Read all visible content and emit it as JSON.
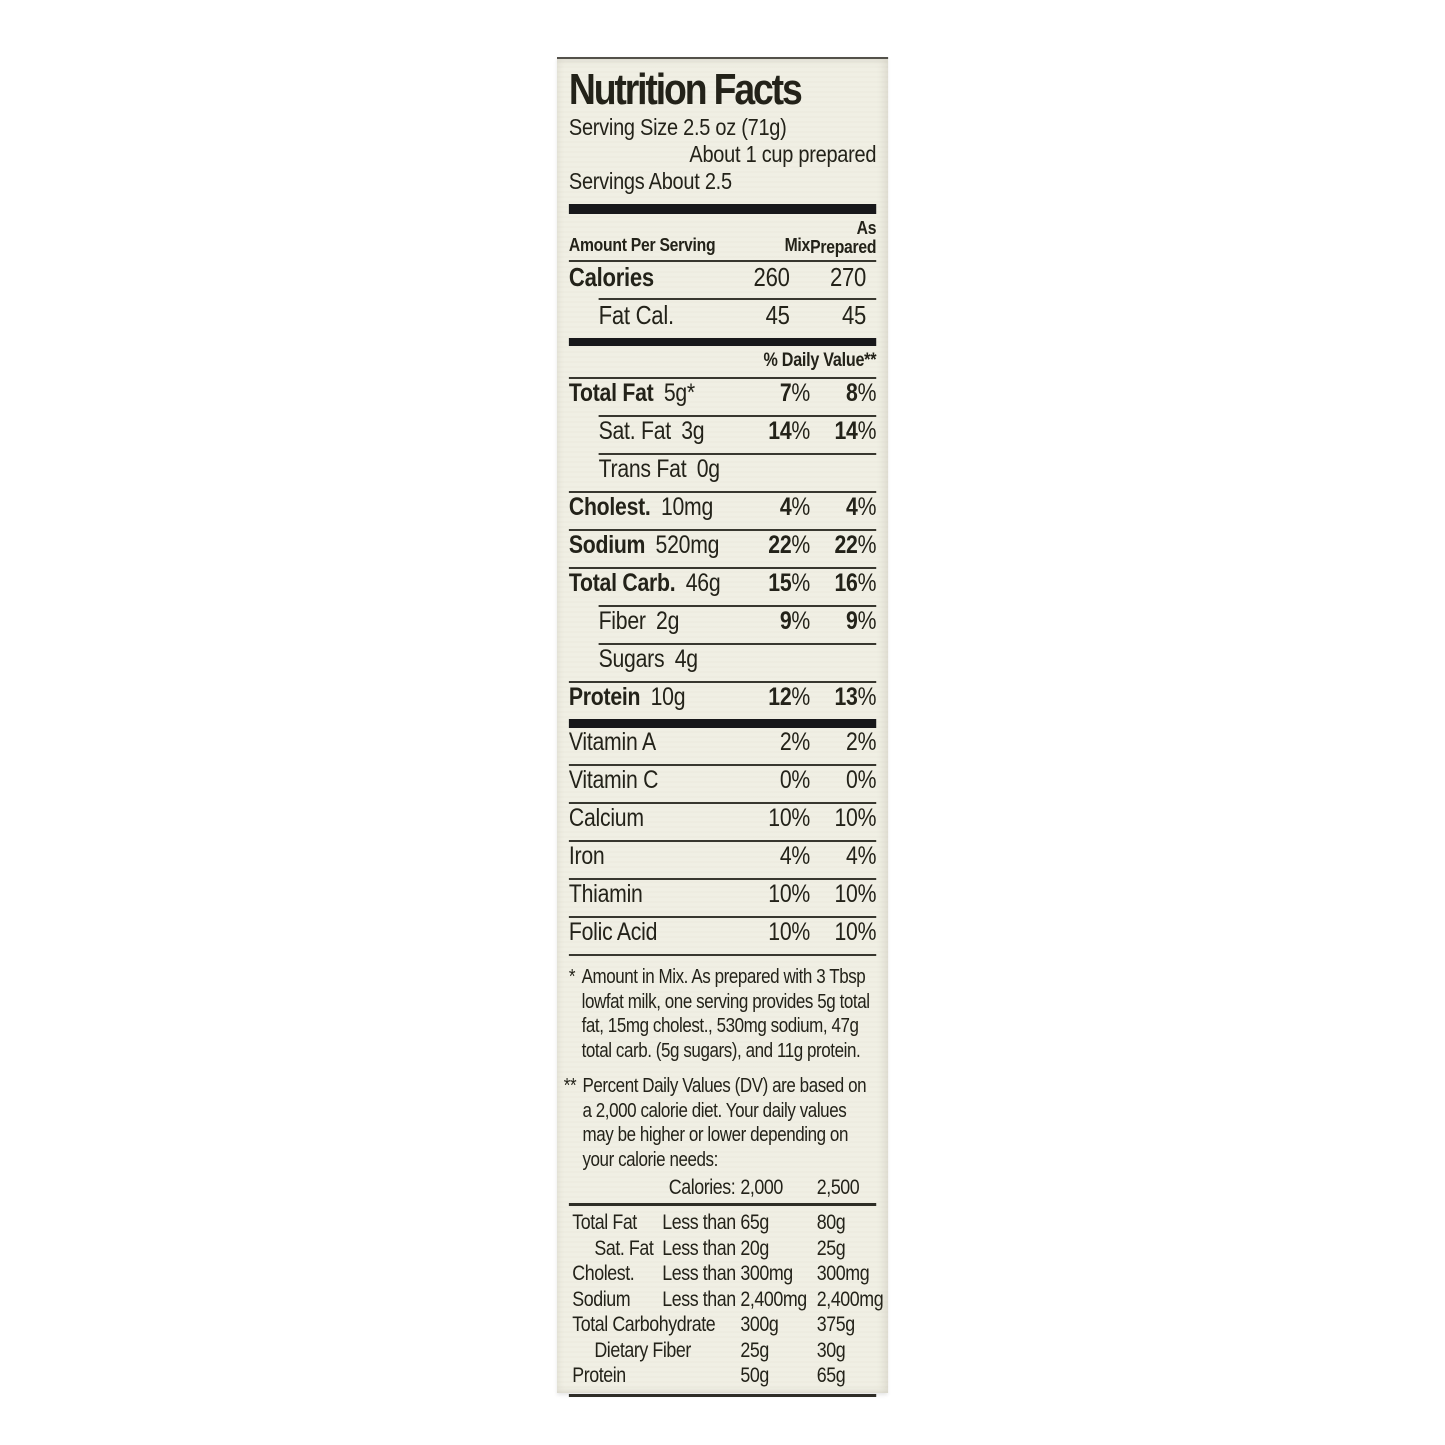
{
  "label": {
    "title": "Nutrition Facts",
    "serving_size": "Serving Size 2.5 oz (71g)",
    "serving_prepared": "About 1 cup prepared",
    "servings": "Servings About 2.5",
    "header": {
      "amount": "Amount Per Serving",
      "mix": "Mix",
      "as_line": "As",
      "prepared_line": "Prepared"
    },
    "calorie_rows": [
      {
        "label": "Calories",
        "mix": "260",
        "prepared": "270",
        "bold": true,
        "indent": 0
      },
      {
        "label": "Fat Cal.",
        "mix": "45",
        "prepared": "45",
        "bold": false,
        "indent": 1
      }
    ],
    "daily_value_header": "% Daily Value**",
    "nutrient_rows": [
      {
        "label": "Total Fat",
        "amount": "5g*",
        "mix": "7%",
        "prepared": "8%",
        "bold": true,
        "indent": 0
      },
      {
        "label": "Sat. Fat",
        "amount": "3g",
        "mix": "14%",
        "prepared": "14%",
        "bold": false,
        "indent": 1
      },
      {
        "label": "Trans Fat",
        "amount": "0g",
        "mix": "",
        "prepared": "",
        "bold": false,
        "indent": 1
      },
      {
        "label": "Cholest.",
        "amount": "10mg",
        "mix": "4%",
        "prepared": "4%",
        "bold": true,
        "indent": 0
      },
      {
        "label": "Sodium",
        "amount": "520mg",
        "mix": "22%",
        "prepared": "22%",
        "bold": true,
        "indent": 0
      },
      {
        "label": "Total Carb.",
        "amount": "46g",
        "mix": "15%",
        "prepared": "16%",
        "bold": true,
        "indent": 0
      },
      {
        "label": "Fiber",
        "amount": "2g",
        "mix": "9%",
        "prepared": "9%",
        "bold": false,
        "indent": 1
      },
      {
        "label": "Sugars",
        "amount": "4g",
        "mix": "",
        "prepared": "",
        "bold": false,
        "indent": 1
      },
      {
        "label": "Protein",
        "amount": "10g",
        "mix": "12%",
        "prepared": "13%",
        "bold": true,
        "indent": 0
      }
    ],
    "vitamin_rows": [
      {
        "label": "Vitamin A",
        "mix": "2%",
        "prepared": "2%"
      },
      {
        "label": "Vitamin C",
        "mix": "0%",
        "prepared": "0%"
      },
      {
        "label": "Calcium",
        "mix": "10%",
        "prepared": "10%"
      },
      {
        "label": "Iron",
        "mix": "4%",
        "prepared": "4%"
      },
      {
        "label": "Thiamin",
        "mix": "10%",
        "prepared": "10%"
      },
      {
        "label": "Folic Acid",
        "mix": "10%",
        "prepared": "10%"
      }
    ],
    "footnote1_marker": "*",
    "footnote1": "Amount in Mix. As prepared with 3 Tbsp lowfat milk, one serving provides 5g total fat, 15mg cholest., 530mg sodium, 47g total carb. (5g sugars), and 11g protein.",
    "footnote2_marker": "**",
    "footnote2": "Percent Daily Values (DV) are based on a 2,000 calorie diet. Your daily values may be higher or lower depending on your calorie needs:",
    "dv_table": {
      "header": {
        "label": "Calories:",
        "col2000": "2,000",
        "col2500": "2,500"
      },
      "rows": [
        {
          "label": "Total Fat",
          "qualifier": "Less than",
          "v2000": "65g",
          "v2500": "80g",
          "indent": 0,
          "wide": false
        },
        {
          "label": "Sat. Fat",
          "qualifier": "Less than",
          "v2000": "20g",
          "v2500": "25g",
          "indent": 1,
          "wide": false
        },
        {
          "label": "Cholest.",
          "qualifier": "Less than",
          "v2000": "300mg",
          "v2500": "300mg",
          "indent": 0,
          "wide": false
        },
        {
          "label": "Sodium",
          "qualifier": "Less than",
          "v2000": "2,400mg",
          "v2500": "2,400mg",
          "indent": 0,
          "wide": false
        },
        {
          "label": "Total Carbohydrate",
          "qualifier": "",
          "v2000": "300g",
          "v2500": "375g",
          "indent": 0,
          "wide": true
        },
        {
          "label": "Dietary Fiber",
          "qualifier": "",
          "v2000": "25g",
          "v2500": "30g",
          "indent": 1,
          "wide": true
        },
        {
          "label": "Protein",
          "qualifier": "",
          "v2000": "50g",
          "v2500": "65g",
          "indent": 0,
          "wide": true
        }
      ]
    }
  },
  "colors": {
    "panel_bg": "#f0efe4",
    "text": "#232219",
    "page_bg": "#ffffff",
    "bar": "#17171a"
  }
}
